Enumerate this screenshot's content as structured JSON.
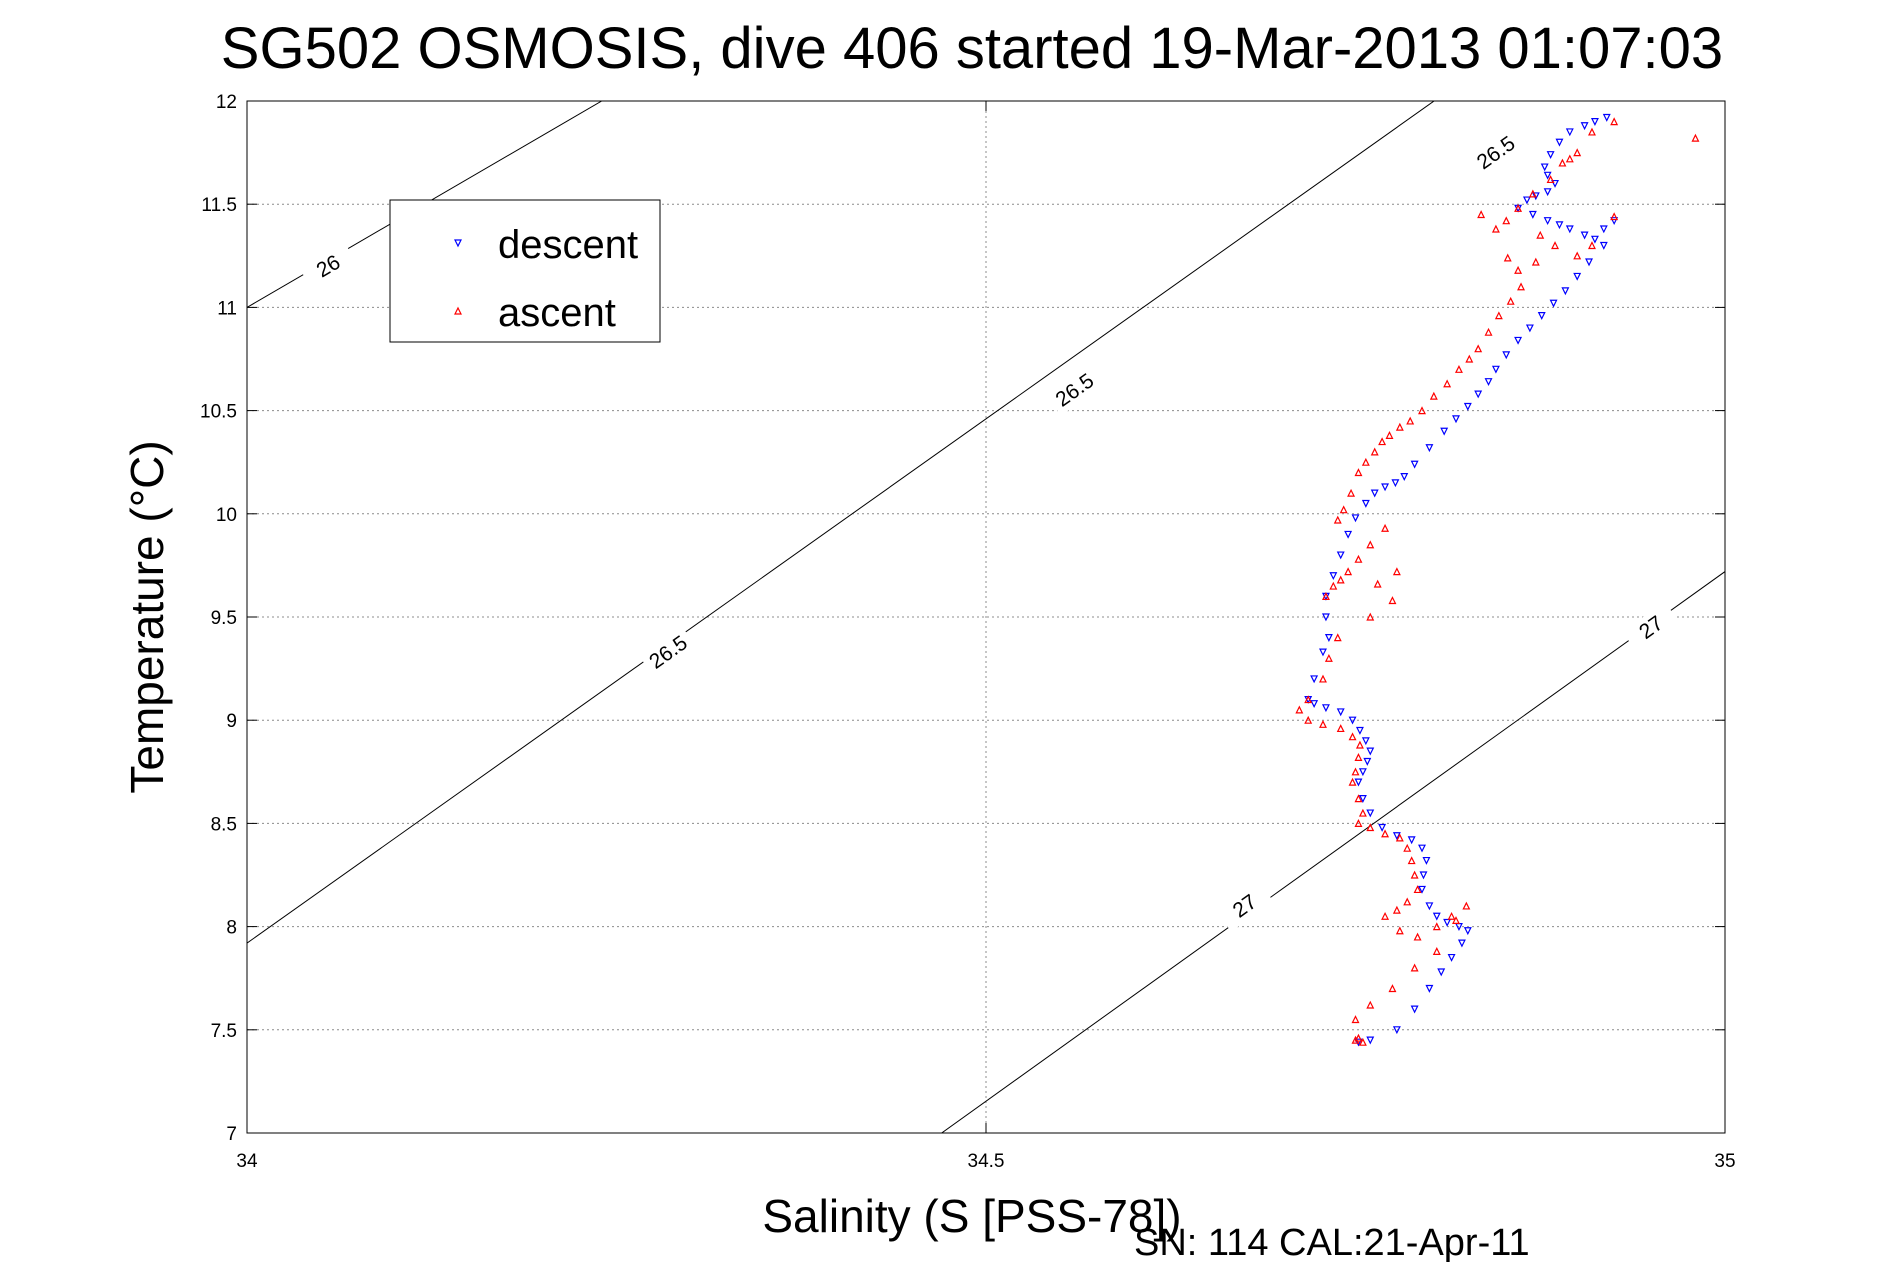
{
  "chart_data": {
    "type": "scatter",
    "title": "SG502 OSMOSIS, dive 406 started 19-Mar-2013 01:07:03",
    "xlabel": "Salinity (S [PSS-78])",
    "ylabel": "Temperature (°C)",
    "footer": "SN: 114  CAL:21-Apr-11",
    "xlim": [
      34,
      35
    ],
    "ylim": [
      7,
      12
    ],
    "xticks": [
      "34",
      "34.5",
      "35"
    ],
    "yticks": [
      "7",
      "7.5",
      "8",
      "8.5",
      "9",
      "9.5",
      "10",
      "10.5",
      "11",
      "11.5",
      "12"
    ],
    "grid": true,
    "legend_position": "top-left",
    "contours": [
      {
        "level": "26",
        "x": [
          34.0,
          34.24
        ],
        "y": [
          11.0,
          12.0
        ],
        "labels": [
          {
            "text": "26",
            "x": 34.055,
            "y": 11.2
          }
        ]
      },
      {
        "level": "26.5",
        "x": [
          34.0,
          35.0
        ],
        "y": [
          7.92,
          13.0
        ],
        "labels": [
          {
            "text": "26.5",
            "x": 34.285,
            "y": 9.33
          },
          {
            "text": "26.5",
            "x": 34.56,
            "y": 10.6
          },
          {
            "text": "26.5",
            "x": 34.845,
            "y": 11.75
          }
        ]
      },
      {
        "level": "27",
        "x": [
          34.47,
          35.0
        ],
        "y": [
          7.0,
          9.72
        ],
        "labels": [
          {
            "text": "27",
            "x": 34.675,
            "y": 8.1
          },
          {
            "text": "27",
            "x": 34.95,
            "y": 9.45
          }
        ]
      }
    ],
    "series": [
      {
        "name": "descent",
        "color": "#0000ff",
        "marker": "triangle-down",
        "points": [
          [
            34.92,
            11.92
          ],
          [
            34.912,
            11.9
          ],
          [
            34.905,
            11.88
          ],
          [
            34.895,
            11.85
          ],
          [
            34.888,
            11.8
          ],
          [
            34.882,
            11.74
          ],
          [
            34.878,
            11.68
          ],
          [
            34.88,
            11.64
          ],
          [
            34.885,
            11.6
          ],
          [
            34.88,
            11.56
          ],
          [
            34.872,
            11.54
          ],
          [
            34.866,
            11.52
          ],
          [
            34.86,
            11.48
          ],
          [
            34.87,
            11.45
          ],
          [
            34.88,
            11.42
          ],
          [
            34.888,
            11.4
          ],
          [
            34.895,
            11.38
          ],
          [
            34.905,
            11.35
          ],
          [
            34.912,
            11.33
          ],
          [
            34.918,
            11.38
          ],
          [
            34.925,
            11.42
          ],
          [
            34.918,
            11.3
          ],
          [
            34.908,
            11.22
          ],
          [
            34.9,
            11.15
          ],
          [
            34.892,
            11.08
          ],
          [
            34.884,
            11.02
          ],
          [
            34.876,
            10.96
          ],
          [
            34.868,
            10.9
          ],
          [
            34.86,
            10.84
          ],
          [
            34.852,
            10.77
          ],
          [
            34.845,
            10.7
          ],
          [
            34.84,
            10.64
          ],
          [
            34.833,
            10.58
          ],
          [
            34.826,
            10.52
          ],
          [
            34.818,
            10.46
          ],
          [
            34.81,
            10.4
          ],
          [
            34.8,
            10.32
          ],
          [
            34.79,
            10.24
          ],
          [
            34.783,
            10.18
          ],
          [
            34.777,
            10.15
          ],
          [
            34.77,
            10.13
          ],
          [
            34.763,
            10.1
          ],
          [
            34.757,
            10.05
          ],
          [
            34.75,
            9.98
          ],
          [
            34.745,
            9.9
          ],
          [
            34.74,
            9.8
          ],
          [
            34.735,
            9.7
          ],
          [
            34.73,
            9.6
          ],
          [
            34.73,
            9.5
          ],
          [
            34.732,
            9.4
          ],
          [
            34.728,
            9.33
          ],
          [
            34.722,
            9.2
          ],
          [
            34.718,
            9.1
          ],
          [
            34.722,
            9.08
          ],
          [
            34.73,
            9.06
          ],
          [
            34.74,
            9.04
          ],
          [
            34.748,
            9.0
          ],
          [
            34.753,
            8.95
          ],
          [
            34.757,
            8.9
          ],
          [
            34.76,
            8.85
          ],
          [
            34.758,
            8.8
          ],
          [
            34.755,
            8.75
          ],
          [
            34.752,
            8.7
          ],
          [
            34.755,
            8.62
          ],
          [
            34.76,
            8.55
          ],
          [
            34.768,
            8.48
          ],
          [
            34.778,
            8.44
          ],
          [
            34.788,
            8.42
          ],
          [
            34.795,
            8.38
          ],
          [
            34.798,
            8.32
          ],
          [
            34.796,
            8.25
          ],
          [
            34.795,
            8.18
          ],
          [
            34.8,
            8.1
          ],
          [
            34.805,
            8.05
          ],
          [
            34.812,
            8.02
          ],
          [
            34.82,
            8.0
          ],
          [
            34.826,
            7.98
          ],
          [
            34.822,
            7.92
          ],
          [
            34.815,
            7.85
          ],
          [
            34.808,
            7.78
          ],
          [
            34.8,
            7.7
          ],
          [
            34.79,
            7.6
          ],
          [
            34.778,
            7.5
          ],
          [
            34.76,
            7.45
          ],
          [
            34.752,
            7.44
          ]
        ]
      },
      {
        "name": "ascent",
        "color": "#ff0000",
        "marker": "triangle-up",
        "points": [
          [
            34.925,
            11.9
          ],
          [
            34.98,
            11.82
          ],
          [
            34.91,
            11.85
          ],
          [
            34.9,
            11.75
          ],
          [
            34.895,
            11.72
          ],
          [
            34.89,
            11.7
          ],
          [
            34.882,
            11.62
          ],
          [
            34.87,
            11.55
          ],
          [
            34.86,
            11.48
          ],
          [
            34.852,
            11.42
          ],
          [
            34.845,
            11.38
          ],
          [
            34.835,
            11.45
          ],
          [
            34.875,
            11.35
          ],
          [
            34.885,
            11.3
          ],
          [
            34.9,
            11.25
          ],
          [
            34.91,
            11.3
          ],
          [
            34.925,
            11.44
          ],
          [
            34.872,
            11.22
          ],
          [
            34.86,
            11.18
          ],
          [
            34.853,
            11.24
          ],
          [
            34.862,
            11.1
          ],
          [
            34.855,
            11.03
          ],
          [
            34.847,
            10.96
          ],
          [
            34.84,
            10.88
          ],
          [
            34.833,
            10.8
          ],
          [
            34.827,
            10.75
          ],
          [
            34.82,
            10.7
          ],
          [
            34.812,
            10.63
          ],
          [
            34.803,
            10.57
          ],
          [
            34.795,
            10.5
          ],
          [
            34.787,
            10.45
          ],
          [
            34.78,
            10.42
          ],
          [
            34.773,
            10.38
          ],
          [
            34.768,
            10.35
          ],
          [
            34.763,
            10.3
          ],
          [
            34.757,
            10.25
          ],
          [
            34.752,
            10.2
          ],
          [
            34.747,
            10.1
          ],
          [
            34.742,
            10.02
          ],
          [
            34.738,
            9.97
          ],
          [
            34.77,
            9.93
          ],
          [
            34.76,
            9.85
          ],
          [
            34.752,
            9.78
          ],
          [
            34.745,
            9.72
          ],
          [
            34.74,
            9.68
          ],
          [
            34.735,
            9.65
          ],
          [
            34.73,
            9.6
          ],
          [
            34.765,
            9.66
          ],
          [
            34.778,
            9.72
          ],
          [
            34.775,
            9.58
          ],
          [
            34.76,
            9.5
          ],
          [
            34.738,
            9.4
          ],
          [
            34.732,
            9.3
          ],
          [
            34.728,
            9.2
          ],
          [
            34.718,
            9.1
          ],
          [
            34.712,
            9.05
          ],
          [
            34.718,
            9.0
          ],
          [
            34.728,
            8.98
          ],
          [
            34.74,
            8.96
          ],
          [
            34.748,
            8.92
          ],
          [
            34.753,
            8.88
          ],
          [
            34.752,
            8.82
          ],
          [
            34.75,
            8.75
          ],
          [
            34.748,
            8.7
          ],
          [
            34.752,
            8.62
          ],
          [
            34.755,
            8.55
          ],
          [
            34.752,
            8.5
          ],
          [
            34.76,
            8.48
          ],
          [
            34.77,
            8.45
          ],
          [
            34.78,
            8.43
          ],
          [
            34.785,
            8.38
          ],
          [
            34.788,
            8.32
          ],
          [
            34.79,
            8.25
          ],
          [
            34.792,
            8.18
          ],
          [
            34.785,
            8.12
          ],
          [
            34.778,
            8.08
          ],
          [
            34.77,
            8.05
          ],
          [
            34.78,
            7.98
          ],
          [
            34.792,
            7.95
          ],
          [
            34.805,
            8.0
          ],
          [
            34.815,
            8.05
          ],
          [
            34.825,
            8.1
          ],
          [
            34.818,
            8.03
          ],
          [
            34.805,
            7.88
          ],
          [
            34.79,
            7.8
          ],
          [
            34.775,
            7.7
          ],
          [
            34.76,
            7.62
          ],
          [
            34.75,
            7.55
          ],
          [
            34.75,
            7.45
          ],
          [
            34.755,
            7.44
          ],
          [
            34.752,
            7.46
          ]
        ]
      }
    ]
  }
}
